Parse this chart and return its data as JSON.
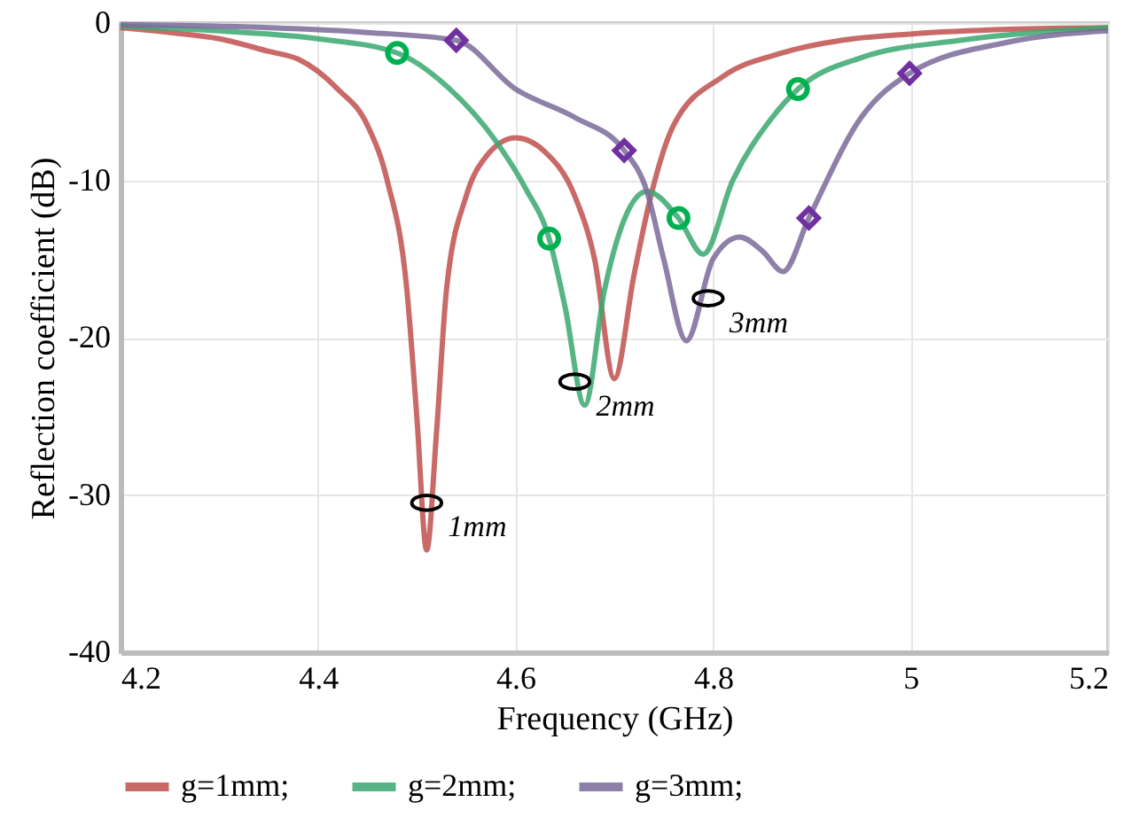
{
  "chart_data": {
    "type": "line",
    "xlabel": "Frequency (GHz)",
    "ylabel": "Reflection coefficient (dB)",
    "xlim": [
      4.2,
      5.2
    ],
    "ylim": [
      -40,
      0
    ],
    "xticks": [
      4.2,
      4.4,
      4.6,
      4.8,
      5,
      5.2
    ],
    "yticks": [
      -40,
      -30,
      -20,
      -10,
      0
    ],
    "grid": true,
    "legend": "bottom",
    "series": [
      {
        "name": "g=1mm;",
        "color": "#c0504d",
        "x": [
          4.2,
          4.25,
          4.3,
          4.35,
          4.38,
          4.42,
          4.45,
          4.47,
          4.49,
          4.5,
          4.51,
          4.52,
          4.53,
          4.55,
          4.57,
          4.6,
          4.63,
          4.66,
          4.68,
          4.7,
          4.72,
          4.737,
          4.76,
          4.81,
          4.87,
          4.93,
          5.0,
          5.1,
          5.2
        ],
        "values": [
          -0.3,
          -0.6,
          -1.0,
          -1.8,
          -2.3,
          -4.2,
          -6.5,
          -10,
          -17,
          -25,
          -33.5,
          -26,
          -17,
          -11,
          -8.5,
          -7.3,
          -8.2,
          -11,
          -15,
          -22.6,
          -16,
          -11,
          -6.5,
          -3.4,
          -1.9,
          -1.1,
          -0.7,
          -0.4,
          -0.3
        ]
      },
      {
        "name": "g=2mm;",
        "color": "#3aa870",
        "x": [
          4.2,
          4.3,
          4.4,
          4.48,
          4.53,
          4.58,
          4.61,
          4.634,
          4.65,
          4.67,
          4.69,
          4.71,
          4.733,
          4.765,
          4.79,
          4.82,
          4.86,
          4.886,
          4.95,
          5.05,
          5.2
        ],
        "values": [
          -0.2,
          -0.5,
          -1.0,
          -1.9,
          -4,
          -7.5,
          -10.5,
          -13.7,
          -18,
          -24.3,
          -17,
          -12.5,
          -10.7,
          -12.4,
          -14.7,
          -10,
          -6,
          -4.2,
          -2.2,
          -1.1,
          -0.3
        ]
      },
      {
        "name": "g=3mm;",
        "color": "#7a6a9a",
        "x": [
          4.2,
          4.35,
          4.45,
          4.54,
          4.6,
          4.66,
          4.71,
          4.733,
          4.75,
          4.773,
          4.8,
          4.827,
          4.85,
          4.871,
          4.897,
          4.95,
          4.999,
          5.1,
          5.2
        ],
        "values": [
          -0.1,
          -0.3,
          -0.6,
          -1.1,
          -4.2,
          -6,
          -8.1,
          -10.7,
          -15,
          -20.2,
          -15,
          -13.6,
          -14.5,
          -15.8,
          -12.4,
          -6,
          -3.2,
          -1.2,
          -0.5
        ]
      },
      {
        "type": "scatter",
        "marker": "circle",
        "color": "#00b050",
        "x": [
          4.48,
          4.634,
          4.765,
          4.886
        ],
        "values": [
          -1.9,
          -13.7,
          -12.4,
          -4.2
        ]
      },
      {
        "type": "scatter",
        "marker": "diamond",
        "color": "#7030a0",
        "x": [
          4.54,
          4.71,
          4.897,
          4.999
        ],
        "values": [
          -1.1,
          -8.1,
          -12.4,
          -3.2
        ]
      }
    ],
    "annotations": [
      {
        "text": "1mm",
        "x": 4.51,
        "y": -30.5
      },
      {
        "text": "2mm",
        "x": 4.66,
        "y": -22.8
      },
      {
        "text": "3mm",
        "x": 4.795,
        "y": -17.5
      }
    ]
  }
}
